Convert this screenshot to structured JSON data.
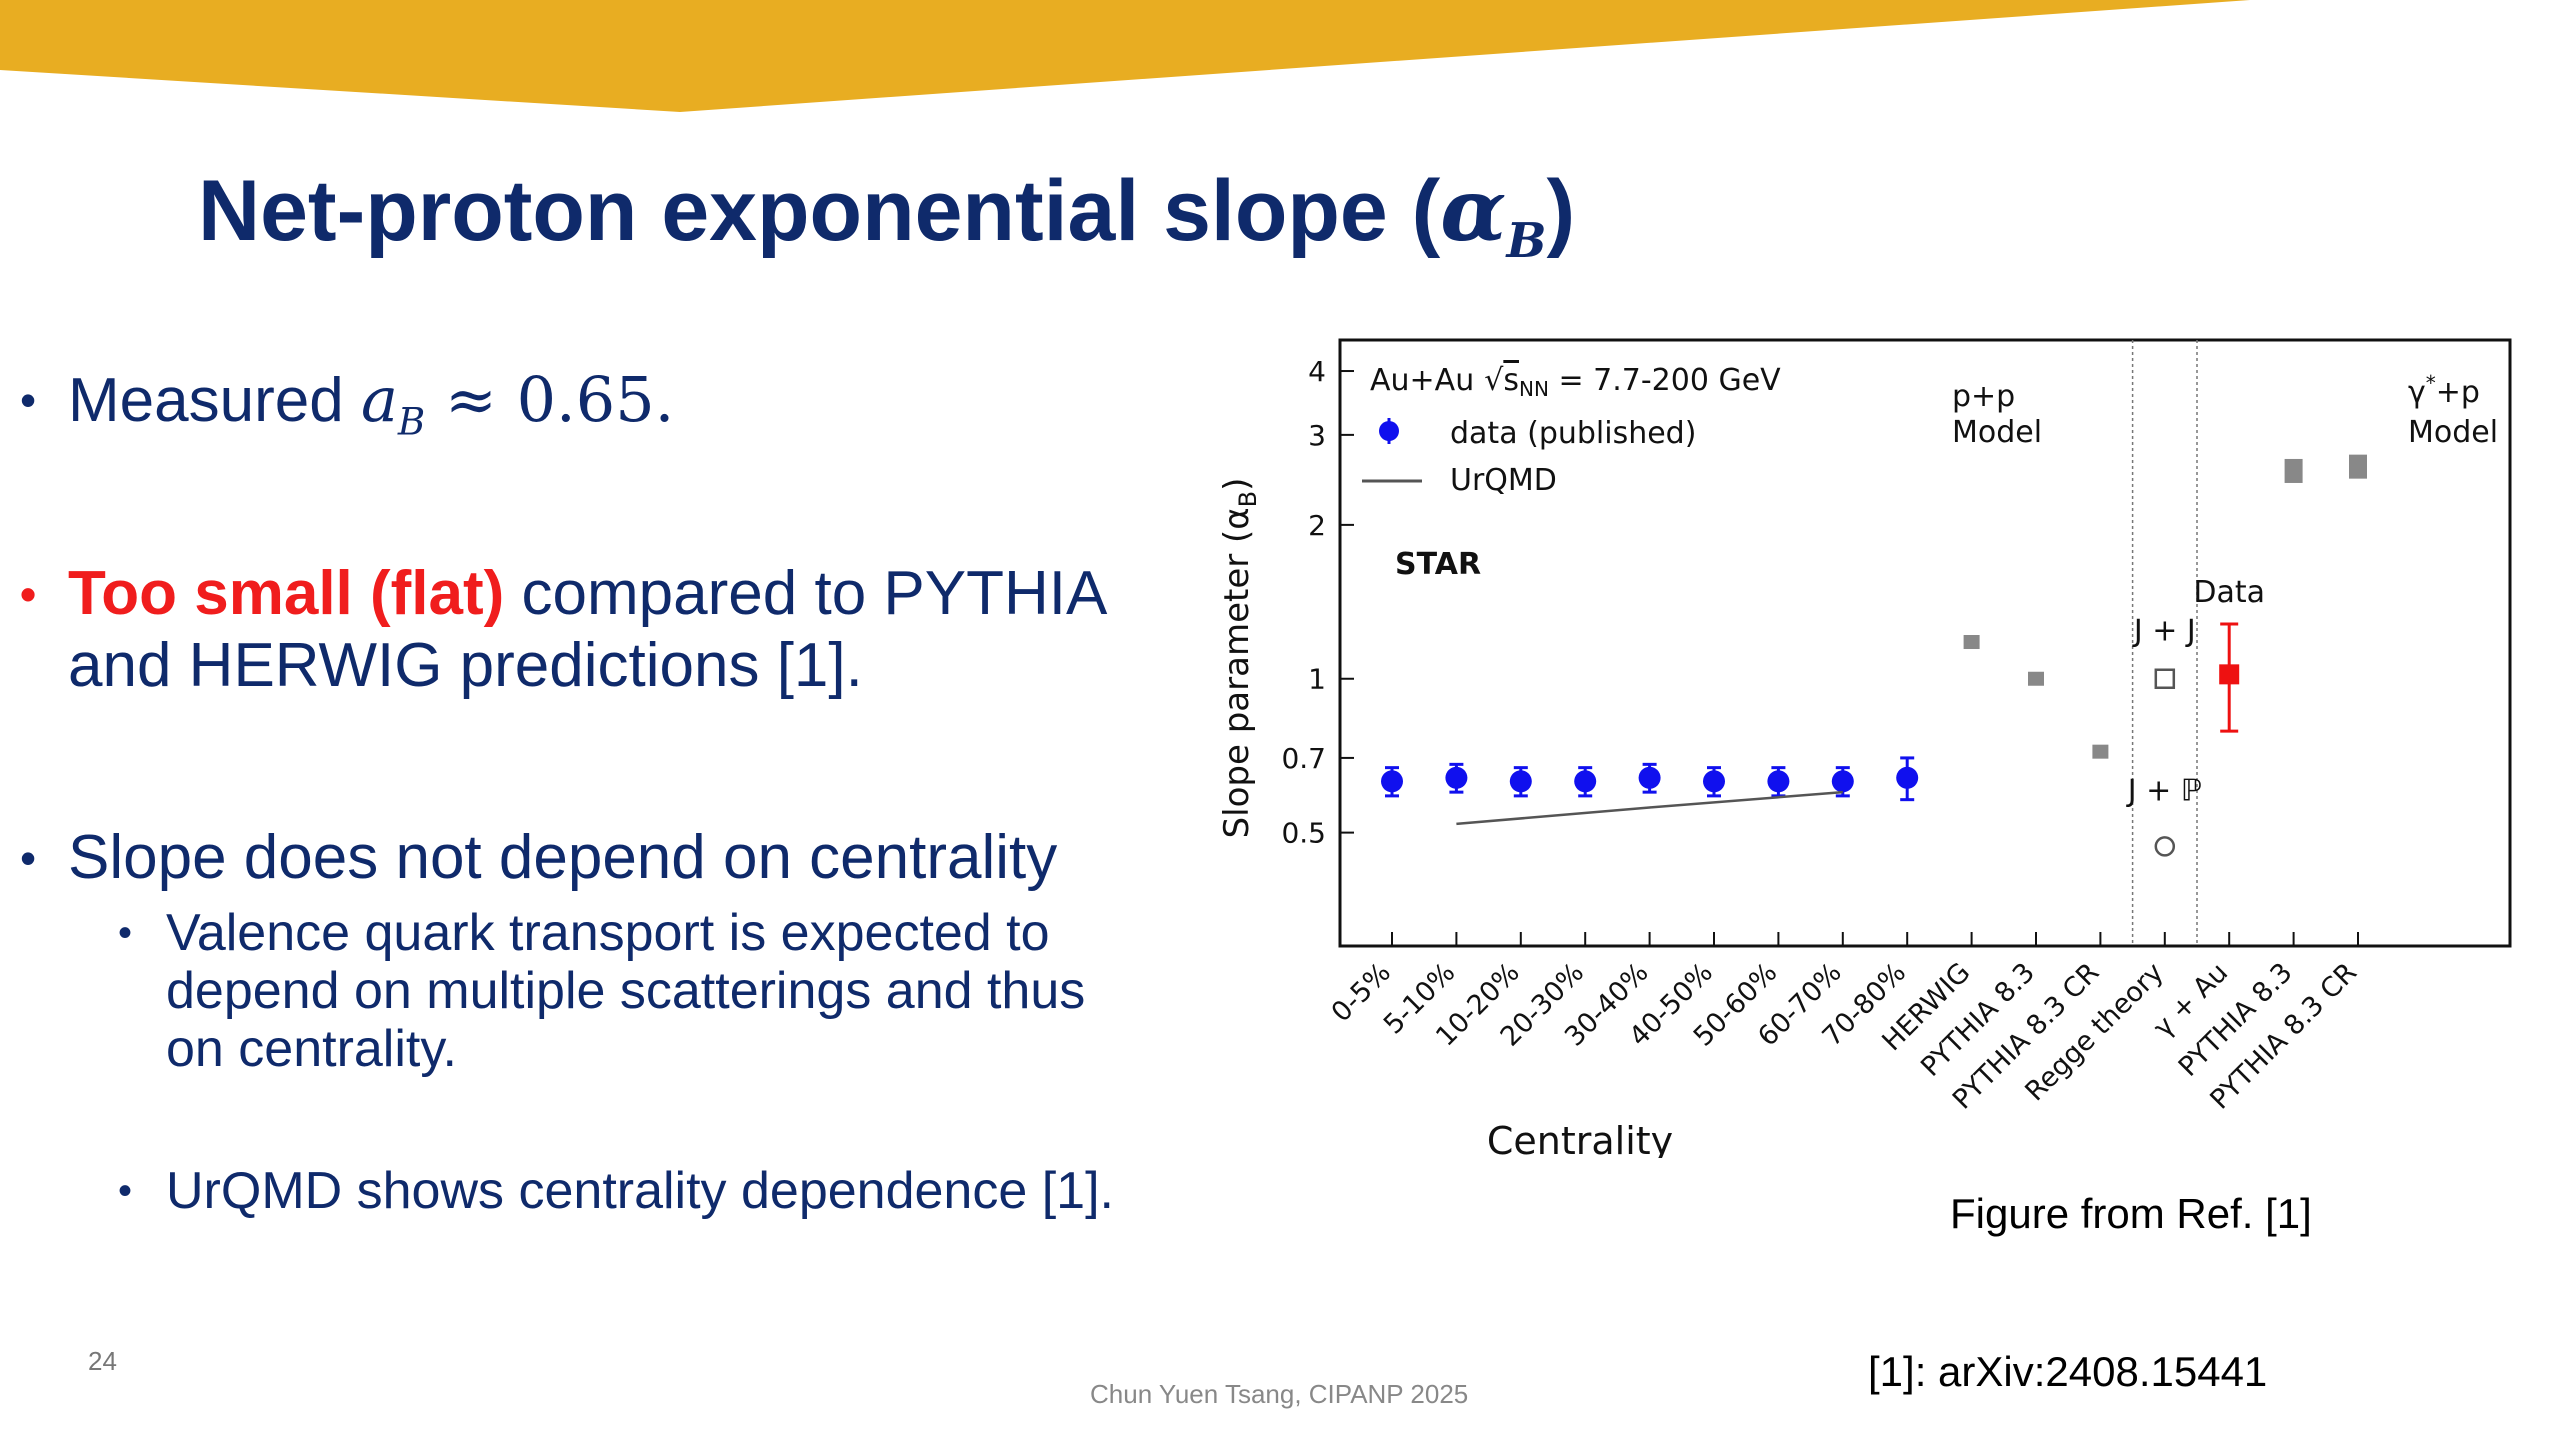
{
  "slide": {
    "title": "Net-proton exponential slope (",
    "title_math": "α",
    "title_sub": "B",
    "title_close": ")",
    "page_number": "24",
    "footer": "Chun Yuen Tsang, CIPANP 2025",
    "caption": "Figure from Ref. [1]",
    "reference": "[1]: arXiv:2408.15441",
    "colors": {
      "banner": "#e8ad22",
      "title": "#0f2a6b",
      "highlight": "#f01d1d"
    }
  },
  "bullets": [
    {
      "text": "Measured ",
      "math": "a",
      "math_sub": "B",
      "math_rest": " ≈ 0.65."
    },
    {
      "highlight": "Too small (flat)",
      "text": " compared to PYTHIA",
      "text2": "and HERWIG predictions [1]."
    },
    {
      "text": "Slope does not depend on centrality"
    }
  ],
  "sub_bullets": [
    {
      "line1": "Valence quark transport is expected to",
      "line2": "depend on multiple scatterings and thus",
      "line3": "on centrality."
    },
    {
      "line1": "UrQMD shows centrality dependence [1]."
    }
  ],
  "chart_data": {
    "type": "scatter",
    "ylabel_main": "Slope parameter (α",
    "ylabel_sub": "B",
    "ylabel_close": ")",
    "xlabel": "Centrality",
    "y_scale": "log",
    "ylim": [
      0.3,
      4.6
    ],
    "yticks": [
      {
        "v": 0.5,
        "label": "0.5"
      },
      {
        "v": 0.7,
        "label": "0.7"
      },
      {
        "v": 1,
        "label": "1"
      },
      {
        "v": 2,
        "label": "2"
      },
      {
        "v": 3,
        "label": "3"
      },
      {
        "v": 4,
        "label": "4"
      }
    ],
    "categories": [
      "0-5%",
      "5-10%",
      "10-20%",
      "20-30%",
      "30-40%",
      "40-50%",
      "50-60%",
      "60-70%",
      "70-80%",
      "HERWIG",
      "PYTHIA 8.3",
      "PYTHIA 8.3 CR",
      "Regge theory",
      "γ + Au",
      "PYTHIA 8.3",
      "PYTHIA 8.3 CR"
    ],
    "legend": {
      "system": "Au+Au",
      "sqrt_sym": "√",
      "sqrt_arg": "s",
      "sqrt_sub": "NN",
      "energy": " = 7.7-200 GeV",
      "data_label": "data (published)",
      "model_label": "UrQMD"
    },
    "experiment_label": "STAR",
    "section_labels": {
      "pp_line1": "p+p",
      "pp_line2": "Model",
      "gp_line1": "γ",
      "gp_sup": "*",
      "gp_rest": "+p",
      "gp_line2": "Model",
      "jj": "J + J",
      "jp": "J + ℙ",
      "data": "Data"
    },
    "series": [
      {
        "name": "data (published)",
        "color": "#1010ee",
        "points": [
          {
            "x": "0-5%",
            "y": 0.63,
            "err": 0.04
          },
          {
            "x": "5-10%",
            "y": 0.64,
            "err": 0.04
          },
          {
            "x": "10-20%",
            "y": 0.63,
            "err": 0.04
          },
          {
            "x": "20-30%",
            "y": 0.63,
            "err": 0.04
          },
          {
            "x": "30-40%",
            "y": 0.64,
            "err": 0.04
          },
          {
            "x": "40-50%",
            "y": 0.63,
            "err": 0.04
          },
          {
            "x": "50-60%",
            "y": 0.63,
            "err": 0.04
          },
          {
            "x": "60-70%",
            "y": 0.63,
            "err": 0.04
          },
          {
            "x": "70-80%",
            "y": 0.64,
            "err": 0.06
          }
        ]
      },
      {
        "name": "UrQMD",
        "color": "#555555",
        "points": [
          {
            "x": "5-10%",
            "y": 0.52
          },
          {
            "x": "30-40%",
            "y": 0.56
          },
          {
            "x": "60-70%",
            "y": 0.6
          }
        ]
      },
      {
        "name": "p+p models",
        "color": "#888888",
        "points": [
          {
            "x": "HERWIG",
            "y": 1.18
          },
          {
            "x": "PYTHIA 8.3",
            "y": 1.0
          },
          {
            "x": "PYTHIA 8.3 CR",
            "y": 0.72
          }
        ]
      },
      {
        "name": "Regge theory",
        "color": "#555555",
        "points": [
          {
            "x": "Regge theory",
            "y": 1.0,
            "label": "J + J"
          },
          {
            "x": "Regge theory",
            "y": 0.47,
            "label": "J + ℙ"
          }
        ]
      },
      {
        "name": "γ + Au data",
        "color": "#ee1111",
        "points": [
          {
            "x": "γ + Au",
            "y": 1.02,
            "err_low": 0.23,
            "err_high": 0.26
          }
        ]
      },
      {
        "name": "γ*+p models",
        "color": "#888888",
        "points": [
          {
            "x": "PYTHIA 8.3",
            "y": 2.55
          },
          {
            "x": "PYTHIA 8.3 CR",
            "y": 2.6
          }
        ]
      }
    ],
    "grid": false
  }
}
